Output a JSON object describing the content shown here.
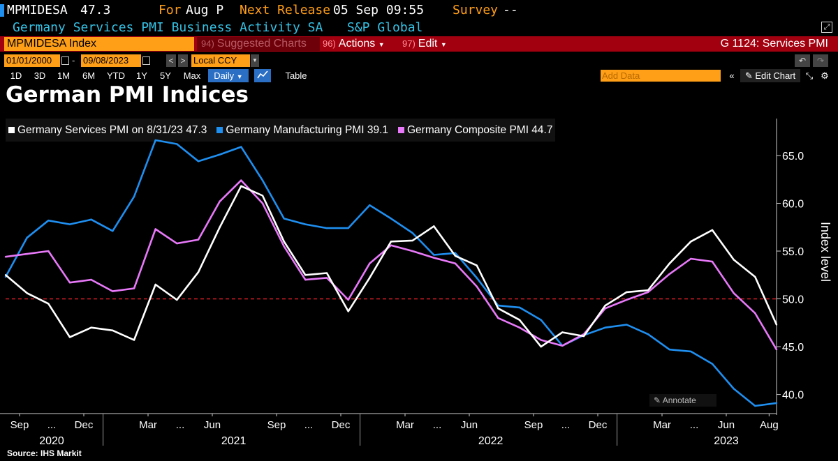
{
  "header": {
    "ticker": "MPMIDESA",
    "value": "47.3",
    "for_label": "For",
    "period": "Aug P",
    "next_release_label": "Next Release",
    "next_release": "05 Sep 09:55",
    "survey_label": "Survey",
    "survey_value": "--",
    "description": "Germany Services PMI Business Activity SA",
    "source": "S&P Global"
  },
  "toolbar": {
    "security": "MPMIDESA Index",
    "suggested_num": "94)",
    "suggested_label": "Suggested Charts",
    "actions_num": "96)",
    "actions_label": "Actions",
    "edit_num": "97)",
    "edit_label": "Edit",
    "chart_id": "G 1124: Services PMI",
    "date_from": "01/01/2000",
    "date_sep": "-",
    "date_to": "09/08/2023",
    "currency": "Local CCY",
    "periods": [
      "1D",
      "3D",
      "1M",
      "6M",
      "YTD",
      "1Y",
      "5Y",
      "Max"
    ],
    "frequency": "Daily",
    "table_label": "Table",
    "add_data_placeholder": "Add Data",
    "edit_chart_label": "Edit Chart"
  },
  "colors": {
    "orange": "#ff9e17",
    "red_bar": "#a3000f",
    "white": "#ffffff",
    "blue": "#1f8ff0",
    "pink": "#e879f9",
    "refline": "#e8202a"
  },
  "chart_data": {
    "type": "line",
    "title": "German PMI Indices",
    "xlabel": "",
    "ylabel": "Index level",
    "ylim": [
      38.0,
      68.5
    ],
    "y_ticks": [
      40,
      45,
      50,
      55,
      60,
      65
    ],
    "y_tick_labels": [
      "40.0",
      "45.0",
      "50.0",
      "55.0",
      "60.0",
      "65.0"
    ],
    "reference_line": 50,
    "x": [
      0,
      1,
      2,
      3,
      4,
      5,
      6,
      7,
      8,
      9,
      10,
      11,
      12,
      13,
      14,
      15,
      16,
      17,
      18,
      19,
      20,
      21,
      22,
      23,
      24,
      25,
      26,
      27,
      28,
      29,
      30,
      31,
      32,
      33,
      34,
      35,
      36
    ],
    "month_ticks": [
      {
        "i": 0,
        "label": "Sep"
      },
      {
        "i": 3,
        "label": "Dec"
      },
      {
        "i": 6,
        "label": "Mar"
      },
      {
        "i": 9,
        "label": "Jun"
      },
      {
        "i": 12,
        "label": "Sep"
      },
      {
        "i": 15,
        "label": "Dec"
      },
      {
        "i": 18,
        "label": "Mar"
      },
      {
        "i": 21,
        "label": "Jun"
      },
      {
        "i": 24,
        "label": "Sep"
      },
      {
        "i": 27,
        "label": "Dec"
      },
      {
        "i": 30,
        "label": "Mar"
      },
      {
        "i": 33,
        "label": "Jun"
      },
      {
        "i": 35,
        "label": "Aug"
      }
    ],
    "gap_ticks": [
      1.5,
      7.5,
      13.5,
      19.5,
      25.5,
      31.5
    ],
    "gap_label": "...",
    "year_labels": [
      {
        "i": 1.5,
        "label": "2020"
      },
      {
        "i": 10,
        "label": "2021"
      },
      {
        "i": 22,
        "label": "2022"
      },
      {
        "i": 33,
        "label": "2023"
      }
    ],
    "year_separators": [
      3.9,
      15.9,
      27.9
    ],
    "series": [
      {
        "name": "Germany Services PMI on 8/31/23 47.3",
        "color": "#ffffff",
        "values": [
          52.5,
          50.6,
          49.5,
          46.0,
          47.0,
          46.7,
          45.7,
          51.5,
          49.9,
          52.8,
          57.5,
          61.8,
          60.8,
          56.0,
          52.5,
          52.7,
          48.7,
          52.2,
          56.0,
          56.1,
          57.6,
          54.5,
          53.5,
          49.0,
          47.8,
          45.0,
          46.5,
          46.1,
          49.3,
          50.7,
          50.9,
          53.7,
          56.0,
          57.2,
          54.1,
          52.3,
          47.3
        ]
      },
      {
        "name": "Germany Manufacturing PMI 39.1",
        "color": "#1f8ff0",
        "values": [
          52.3,
          56.4,
          58.2,
          57.8,
          58.3,
          57.1,
          60.7,
          66.6,
          66.2,
          64.4,
          65.1,
          65.9,
          62.4,
          58.4,
          57.8,
          57.4,
          57.4,
          59.8,
          58.4,
          56.9,
          54.6,
          54.8,
          52.2,
          49.3,
          49.1,
          47.8,
          45.1,
          46.2,
          47.0,
          47.3,
          46.3,
          44.7,
          44.5,
          43.2,
          40.6,
          38.8,
          39.1
        ]
      },
      {
        "name": "Germany Composite PMI 44.7",
        "color": "#e879f9",
        "values": [
          54.4,
          54.7,
          55.0,
          51.7,
          52.0,
          50.8,
          51.1,
          57.3,
          55.8,
          56.2,
          60.2,
          62.4,
          60.0,
          55.5,
          52.0,
          52.2,
          49.9,
          53.7,
          55.6,
          55.0,
          54.3,
          53.7,
          51.3,
          48.0,
          47.0,
          45.7,
          45.1,
          46.3,
          49.0,
          49.9,
          50.7,
          52.6,
          54.2,
          53.9,
          50.6,
          48.5,
          44.7
        ]
      }
    ]
  },
  "footer": {
    "annotate_label": "Annotate",
    "source_text": "Source: IHS Markit"
  }
}
